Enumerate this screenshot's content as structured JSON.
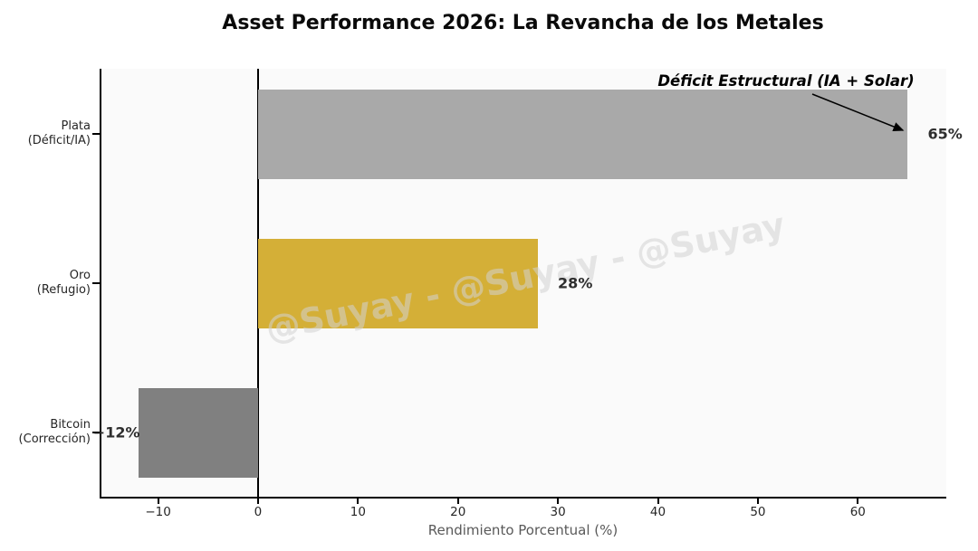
{
  "title": "Asset Performance 2026: La Revancha de los Metales",
  "watermark": "@Suyay - @Suyay - @Suyay",
  "chart_data": {
    "type": "bar",
    "orientation": "horizontal",
    "title": "Asset Performance 2026: La Revancha de los Metales",
    "categories": [
      "Plata (Déficit/IA)",
      "Oro (Refugio)",
      "Bitcoin (Corrección)"
    ],
    "category_lines": [
      [
        "Plata",
        "(Déficit/IA)"
      ],
      [
        "Oro",
        "(Refugio)"
      ],
      [
        "Bitcoin",
        "(Corrección)"
      ]
    ],
    "values": [
      65,
      28,
      -12
    ],
    "value_labels": [
      "65%",
      "28%",
      "−12%"
    ],
    "bar_colors": [
      "#a9a9a9",
      "#d4af37",
      "#808080"
    ],
    "xlabel": "Rendimiento Porcentual (%)",
    "ylabel": "",
    "xlim": [
      -15.85,
      68.85
    ],
    "xticks": [
      -10,
      0,
      10,
      20,
      30,
      40,
      50,
      60
    ],
    "xtick_labels": [
      "−10",
      "0",
      "10",
      "20",
      "30",
      "40",
      "50",
      "60"
    ],
    "grid": false,
    "legend": false,
    "plot_background": "#fafafa",
    "annotation": {
      "text": "Déficit Estructural (IA + Solar)",
      "points_to_value": 65,
      "points_to_category": "Plata (Déficit/IA)"
    }
  }
}
